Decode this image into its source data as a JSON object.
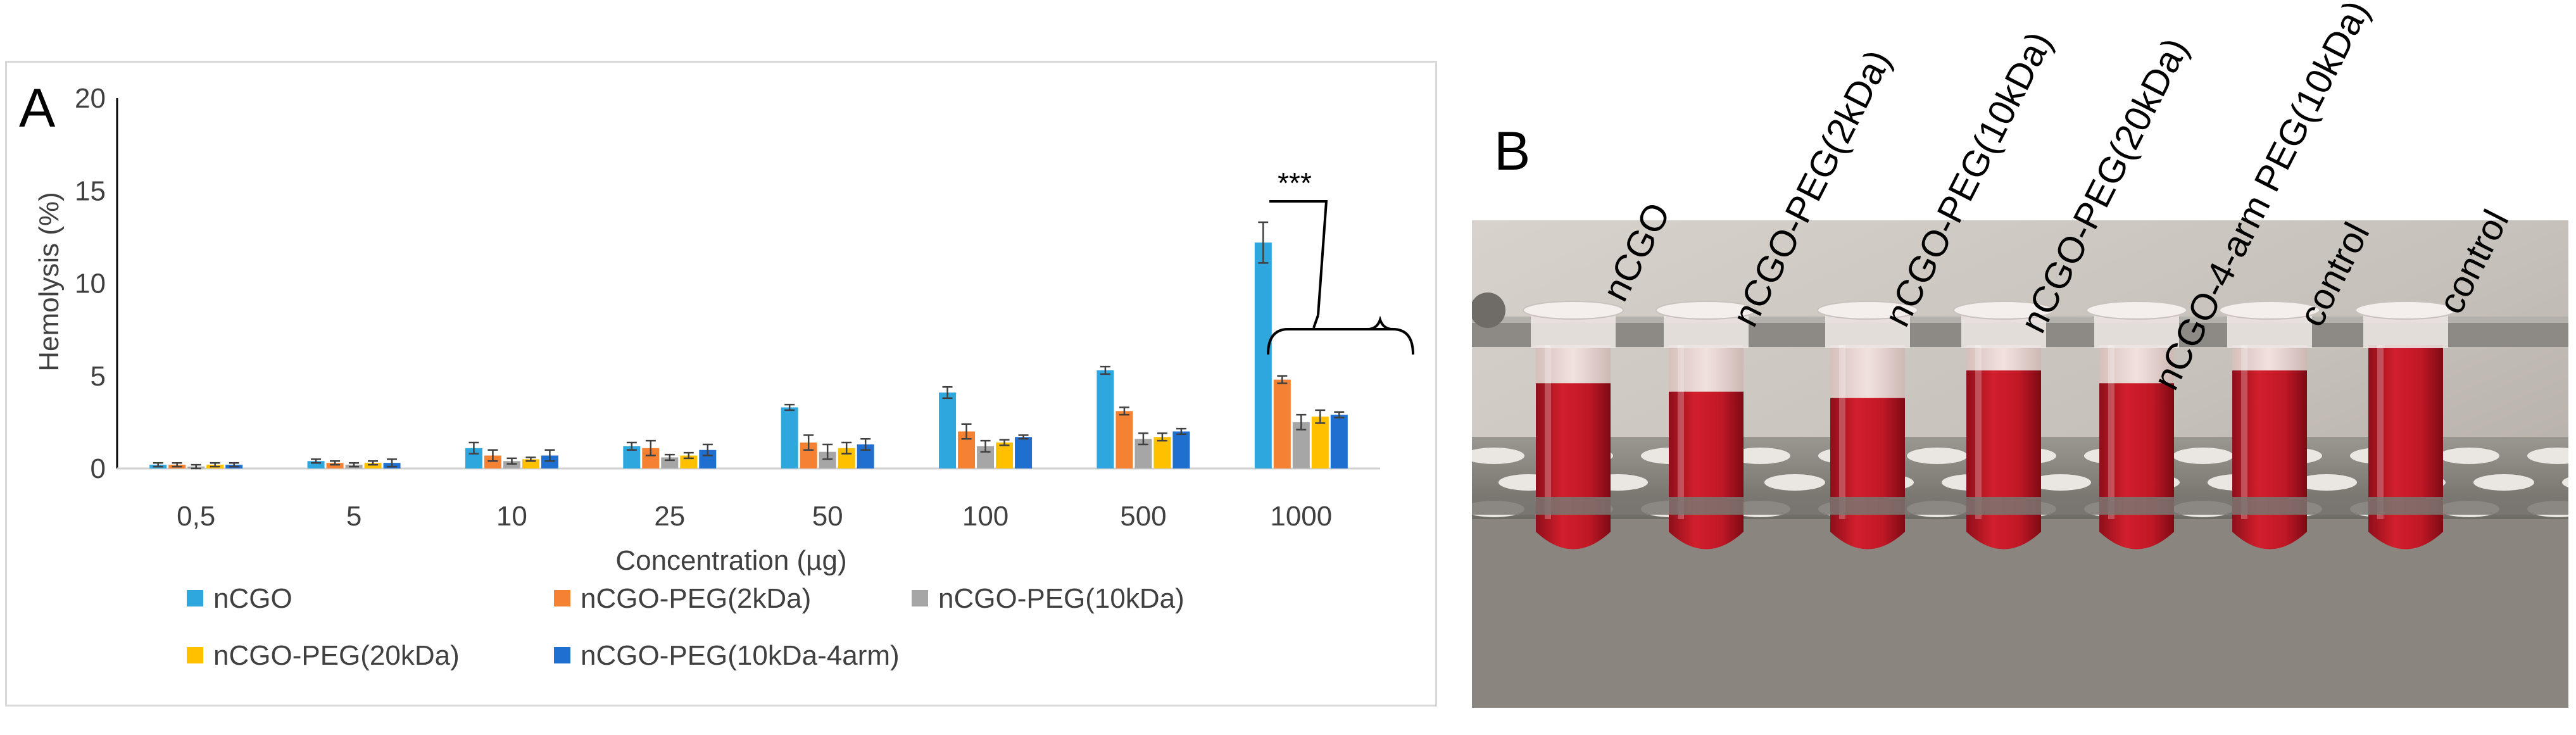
{
  "panel_a": {
    "letter": "A",
    "chart_data": {
      "type": "bar",
      "title": "",
      "xlabel": "Concentration (µg)",
      "ylabel": "Hemolysis (%)",
      "ylim": [
        0,
        20
      ],
      "yticks": [
        0,
        5,
        10,
        15,
        20
      ],
      "grid": false,
      "legend_placement": "bottom",
      "categories": [
        "0,5",
        "5",
        "10",
        "25",
        "50",
        "100",
        "500",
        "1000"
      ],
      "series": [
        {
          "name": "nCGO",
          "color": "#2ea6de",
          "values": [
            0.2,
            0.4,
            1.1,
            1.2,
            3.3,
            4.1,
            5.3,
            12.2
          ],
          "errors": [
            0.1,
            0.1,
            0.3,
            0.2,
            0.15,
            0.3,
            0.2,
            1.1
          ]
        },
        {
          "name": "nCGO-PEG(2kDa)",
          "color": "#f58233",
          "values": [
            0.2,
            0.3,
            0.7,
            1.1,
            1.4,
            2.0,
            3.1,
            4.8
          ],
          "errors": [
            0.1,
            0.1,
            0.3,
            0.4,
            0.4,
            0.4,
            0.2,
            0.2
          ]
        },
        {
          "name": "nCGO-PEG(10kDa)",
          "color": "#a6a6a6",
          "values": [
            0.1,
            0.2,
            0.4,
            0.6,
            0.9,
            1.2,
            1.6,
            2.5
          ],
          "errors": [
            0.1,
            0.1,
            0.15,
            0.15,
            0.4,
            0.3,
            0.3,
            0.4
          ]
        },
        {
          "name": "nCGO-PEG(20kDa)",
          "color": "#ffc000",
          "values": [
            0.2,
            0.3,
            0.5,
            0.7,
            1.1,
            1.4,
            1.7,
            2.8
          ],
          "errors": [
            0.1,
            0.1,
            0.1,
            0.15,
            0.3,
            0.15,
            0.2,
            0.35
          ]
        },
        {
          "name": "nCGO-PEG(10kDa-4arm)",
          "color": "#1f6fd1",
          "values": [
            0.2,
            0.3,
            0.7,
            1.0,
            1.3,
            1.7,
            2.0,
            2.9
          ],
          "errors": [
            0.1,
            0.2,
            0.3,
            0.3,
            0.3,
            0.1,
            0.15,
            0.15
          ]
        }
      ],
      "annotations": [
        {
          "text": "***"
        }
      ]
    }
  },
  "panel_b": {
    "letter": "B",
    "tube_labels": [
      "nCGO",
      "nCGO-PEG(2kDa)",
      "nCGO-PEG(10kDa)",
      "nCGO-PEG(20kDa)",
      "nCGO-4-arm PEG(10kDa)",
      "control",
      "control"
    ]
  }
}
